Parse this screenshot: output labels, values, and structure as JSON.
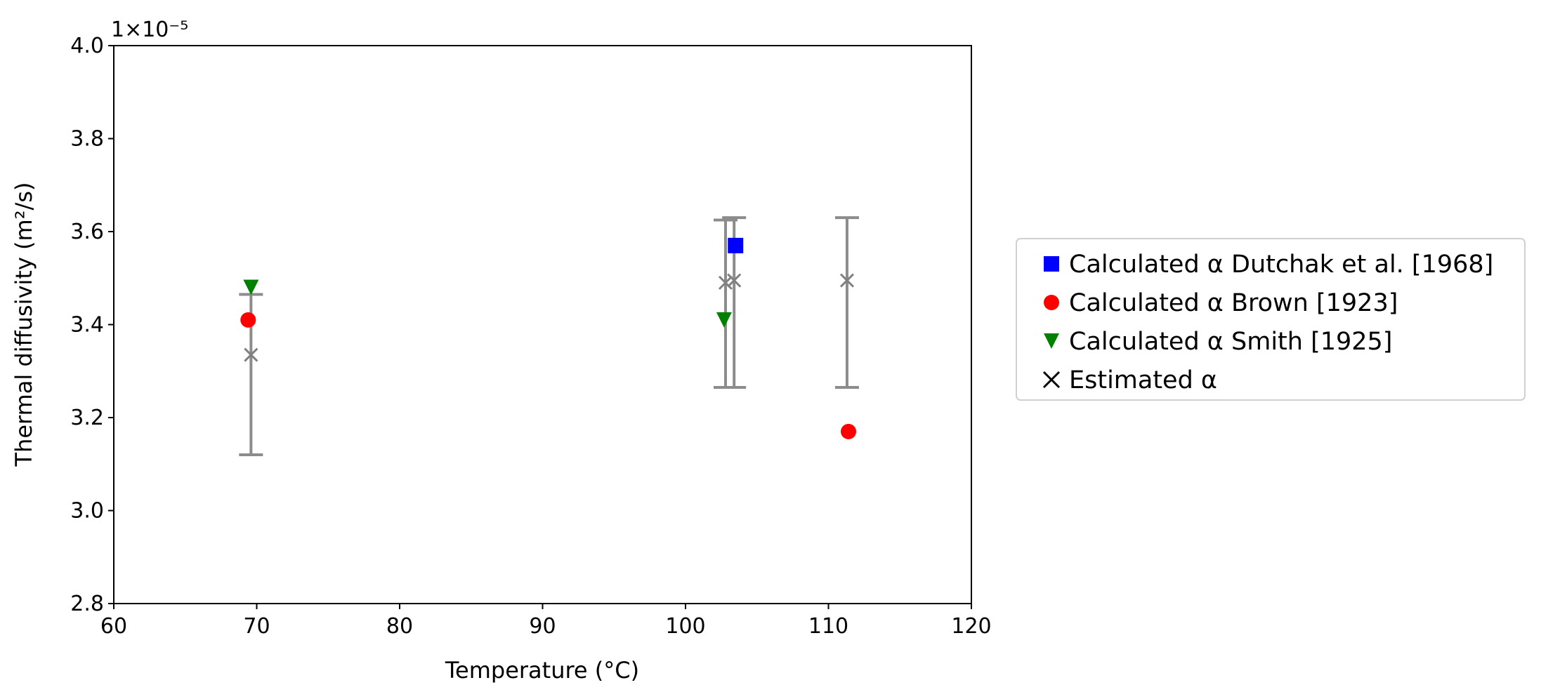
{
  "chart_data": {
    "type": "scatter",
    "title": "",
    "xlabel": "Temperature (°C)",
    "ylabel": "Thermal diffusivity (m²/s)",
    "y_multiplier_label": "1×10⁻⁵",
    "xlim": [
      60,
      120
    ],
    "ylim": [
      2.8,
      4.0
    ],
    "x_ticks": [
      60,
      70,
      80,
      90,
      100,
      110,
      120
    ],
    "y_ticks": [
      2.8,
      3.0,
      3.2,
      3.4,
      3.6,
      3.8,
      4.0
    ],
    "y_tick_labels": [
      "2.8",
      "3.0",
      "3.2",
      "3.4",
      "3.6",
      "3.8",
      "4.0"
    ],
    "grid": false,
    "legend_position": "outside-right",
    "series": [
      {
        "name": "Calculated α Dutchak et al. [1968]",
        "marker": "square",
        "color": "#0000ff",
        "points": [
          {
            "x": 103.5,
            "y": 3.57
          }
        ]
      },
      {
        "name": "Calculated α Brown [1923]",
        "marker": "circle",
        "color": "#ff0000",
        "points": [
          {
            "x": 69.4,
            "y": 3.41
          },
          {
            "x": 111.4,
            "y": 3.17
          }
        ]
      },
      {
        "name": "Calculated α Smith [1925]",
        "marker": "triangle-down",
        "color": "#008000",
        "points": [
          {
            "x": 69.6,
            "y": 3.48
          },
          {
            "x": 102.7,
            "y": 3.41
          }
        ]
      },
      {
        "name": "Estimated α",
        "marker": "x",
        "color": "#808080",
        "legend_color": "#000000",
        "points": [
          {
            "x": 69.6,
            "y": 3.335,
            "yerr_low": 3.12,
            "yerr_high": 3.465
          },
          {
            "x": 102.8,
            "y": 3.49,
            "yerr_low": 3.265,
            "yerr_high": 3.625
          },
          {
            "x": 103.4,
            "y": 3.495,
            "yerr_low": 3.265,
            "yerr_high": 3.63
          },
          {
            "x": 111.3,
            "y": 3.495,
            "yerr_low": 3.265,
            "yerr_high": 3.63
          }
        ]
      }
    ]
  }
}
